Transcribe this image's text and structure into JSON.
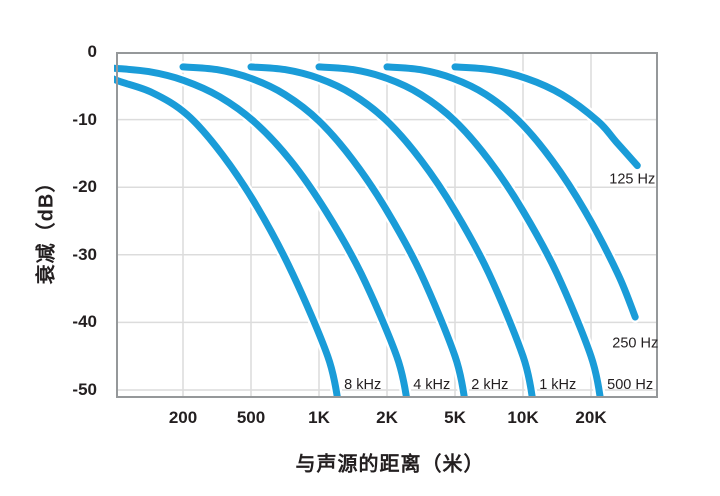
{
  "chart_data": {
    "type": "line",
    "title": "",
    "xlabel": "与声源的距离（米）",
    "ylabel": "衰减（dB）",
    "x_scale": "log",
    "x_tick_labels": [
      "200",
      "500",
      "1K",
      "2K",
      "5K",
      "10K",
      "20K"
    ],
    "x_tick_values": [
      200,
      500,
      1000,
      2000,
      5000,
      10000,
      20000
    ],
    "y_tick_labels": [
      "0",
      "-10",
      "-20",
      "-30",
      "-40",
      "-50"
    ],
    "y_tick_values": [
      0,
      -10,
      -20,
      -30,
      -40,
      -50
    ],
    "ylim": [
      -51.2,
      0
    ],
    "xlim_meters": [
      81,
      49000
    ],
    "grid": true,
    "line_color": "#1A9CD8",
    "grid_color": "#DCDCDC",
    "border_color": "#95989A",
    "text_color": "#231F20",
    "series": [
      {
        "name": "8 kHz",
        "label": "8 kHz",
        "points": [
          [
            65,
            -2.9
          ],
          [
            82,
            -4.2
          ],
          [
            132,
            -6.0
          ],
          [
            212,
            -9.3
          ],
          [
            340,
            -15.2
          ],
          [
            534,
            -23.0
          ],
          [
            764,
            -32.8
          ],
          [
            1093,
            -45.0
          ],
          [
            1217,
            -51.8
          ]
        ]
      },
      {
        "name": "4 kHz",
        "label": "4 kHz",
        "points": [
          [
            79,
            -2.4
          ],
          [
            126,
            -2.9
          ],
          [
            202,
            -4.2
          ],
          [
            327,
            -6.6
          ],
          [
            520,
            -10.4
          ],
          [
            746,
            -16.0
          ],
          [
            1071,
            -23.5
          ],
          [
            1537,
            -32.8
          ],
          [
            2279,
            -45.0
          ],
          [
            2632,
            -51.8
          ]
        ]
      },
      {
        "name": "2 kHz",
        "label": "2 kHz",
        "points": [
          [
            200,
            -2.2
          ],
          [
            316,
            -2.6
          ],
          [
            500,
            -3.9
          ],
          [
            707,
            -6.3
          ],
          [
            1000,
            -10.2
          ],
          [
            1414,
            -16.0
          ],
          [
            2000,
            -23.5
          ],
          [
            3162,
            -32.8
          ],
          [
            5000,
            -45.0
          ],
          [
            5550,
            -51.8
          ]
        ]
      },
      {
        "name": "1 kHz",
        "label": "1 kHz",
        "points": [
          [
            500,
            -2.2
          ],
          [
            707,
            -2.6
          ],
          [
            1000,
            -3.9
          ],
          [
            1414,
            -6.3
          ],
          [
            2000,
            -10.2
          ],
          [
            3162,
            -16.0
          ],
          [
            5000,
            -23.5
          ],
          [
            7070,
            -32.8
          ],
          [
            10000,
            -45.0
          ],
          [
            11090,
            -51.8
          ]
        ]
      },
      {
        "name": "500 Hz",
        "label": "500 Hz",
        "points": [
          [
            1000,
            -2.2
          ],
          [
            1414,
            -2.6
          ],
          [
            2000,
            -3.9
          ],
          [
            3162,
            -6.3
          ],
          [
            5000,
            -10.2
          ],
          [
            7071,
            -16.0
          ],
          [
            10000,
            -23.5
          ],
          [
            14142,
            -32.8
          ],
          [
            20000,
            -45.0
          ],
          [
            22900,
            -51.8
          ]
        ]
      },
      {
        "name": "250 Hz",
        "label": "250 Hz",
        "points": [
          [
            2000,
            -2.2
          ],
          [
            3120,
            -2.6
          ],
          [
            4860,
            -3.9
          ],
          [
            6860,
            -6.3
          ],
          [
            9590,
            -10.2
          ],
          [
            13420,
            -16.0
          ],
          [
            18790,
            -23.5
          ],
          [
            28700,
            -32.8
          ],
          [
            36300,
            -39.2
          ]
        ]
      },
      {
        "name": "125 Hz",
        "label": "125 Hz",
        "points": [
          [
            5000,
            -2.2
          ],
          [
            7190,
            -2.6
          ],
          [
            10350,
            -3.9
          ],
          [
            14900,
            -6.3
          ],
          [
            21900,
            -10.2
          ],
          [
            28100,
            -13.3
          ],
          [
            37300,
            -16.8
          ]
        ]
      }
    ]
  }
}
